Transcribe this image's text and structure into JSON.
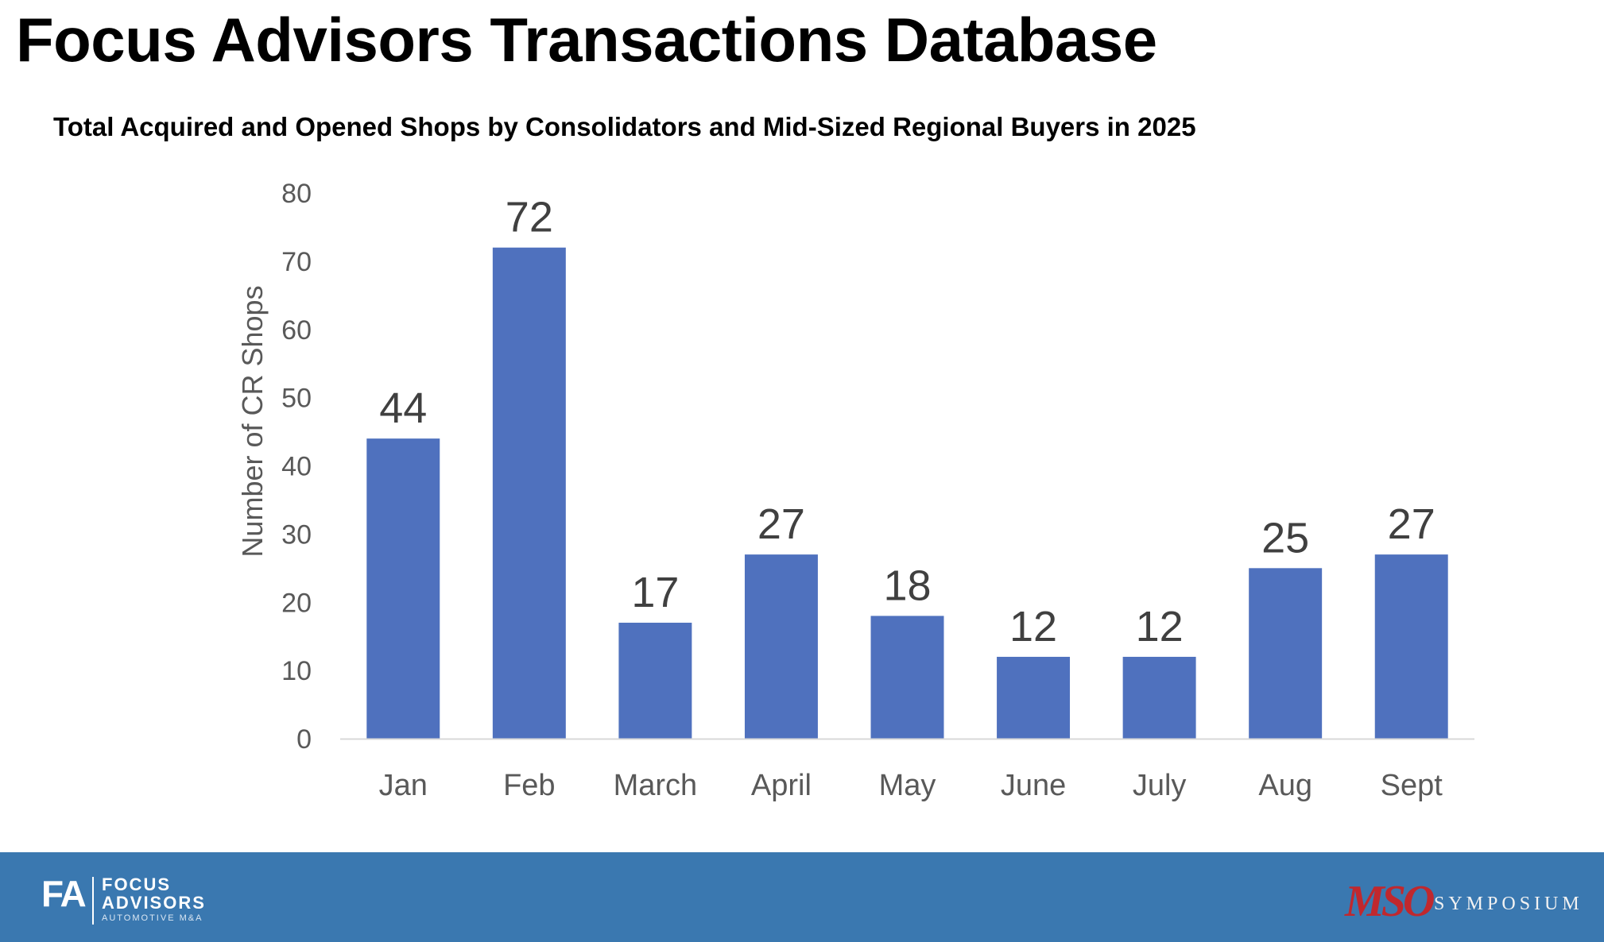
{
  "page": {
    "title": "Focus Advisors Transactions Database"
  },
  "chart_data": {
    "type": "bar",
    "title": "Total Acquired and Opened Shops by Consolidators and Mid-Sized Regional Buyers in 2025",
    "xlabel": "",
    "ylabel": "Number of CR Shops",
    "categories": [
      "Jan",
      "Feb",
      "March",
      "April",
      "May",
      "June",
      "July",
      "Aug",
      "Sept"
    ],
    "values": [
      44,
      72,
      17,
      27,
      18,
      12,
      12,
      25,
      27
    ],
    "ylim": [
      0,
      80
    ],
    "yticks": [
      "0",
      "10",
      "20",
      "30",
      "40",
      "50",
      "60",
      "70",
      "80"
    ],
    "data_labels": true,
    "grid": false,
    "legend": "none",
    "bar_color": "#4f71be"
  },
  "footer": {
    "left_logo": {
      "mark": "FA",
      "line1": "FOCUS",
      "line2": "ADVISORS",
      "sub": "AUTOMOTIVE M&A"
    },
    "right_logo": {
      "mark": "MSO",
      "word": "SYMPOSIUM"
    },
    "background_color": "#3a78b0"
  }
}
